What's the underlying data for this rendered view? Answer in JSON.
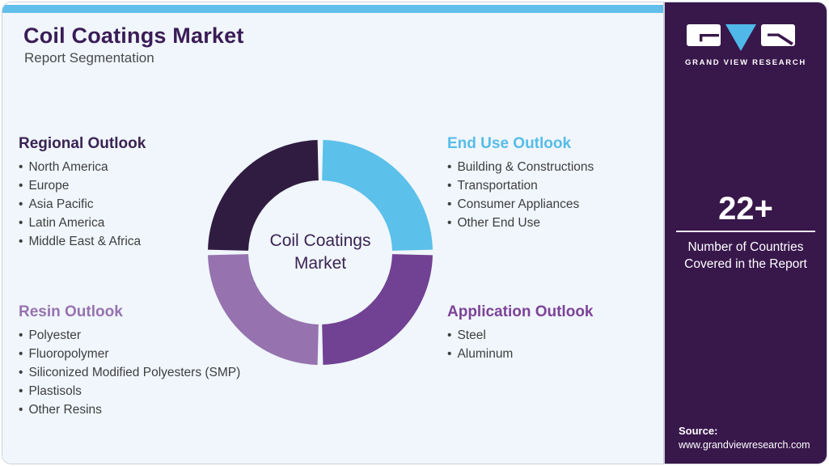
{
  "header": {
    "title": "Coil Coatings Market",
    "subtitle": "Report Segmentation"
  },
  "donut_center_label": {
    "line1": "Coil Coatings",
    "line2": "Market"
  },
  "segments": [
    {
      "id": "regional",
      "heading": "Regional Outlook",
      "heading_color": "#3A2353",
      "color": "#301C41",
      "quadrant": "top-left",
      "items": [
        "North America",
        "Europe",
        "Asia Pacific",
        "Latin America",
        "Middle East & Africa"
      ]
    },
    {
      "id": "end_use",
      "heading": "End Use Outlook",
      "heading_color": "#56BCE8",
      "color": "#5BC0EA",
      "quadrant": "top-right",
      "items": [
        "Building & Constructions",
        "Transportation",
        "Consumer Appliances",
        "Other End Use"
      ]
    },
    {
      "id": "resin",
      "heading": "Resin Outlook",
      "heading_color": "#9673AF",
      "color": "#9673AF",
      "quadrant": "bottom-left",
      "items": [
        "Polyester",
        "Fluoropolymer",
        "Siliconized Modified Polyesters (SMP)",
        "Plastisols",
        "Other Resins"
      ]
    },
    {
      "id": "application",
      "heading": "Application Outlook",
      "heading_color": "#7D4398",
      "color": "#714193",
      "quadrant": "bottom-right",
      "items": [
        "Steel",
        "Aluminum"
      ]
    }
  ],
  "sidebar": {
    "brand": "GRAND VIEW RESEARCH",
    "stat_value": "22+",
    "stat_caption_line1": "Number of Countries",
    "stat_caption_line2": "Covered in the Report",
    "source_label": "Source:",
    "source_url": "www.grandviewresearch.com"
  },
  "colors": {
    "topbar": "#62BEEA",
    "panel_background": "#38174B",
    "page_background": "#F0F6FB",
    "title": "#3A1C56",
    "body_text": "#3E3E40",
    "logo_triangle": "#4FB8E8"
  }
}
